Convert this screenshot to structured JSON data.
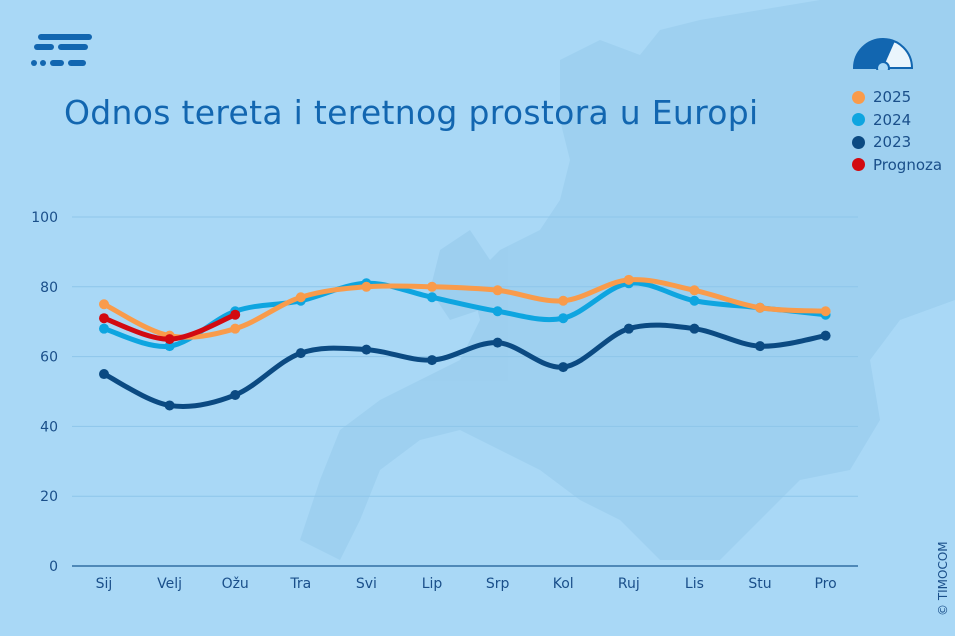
{
  "title": "Odnos tereta i teretnog prostora u Europi",
  "copyright": "© TIMOCOM",
  "legend": [
    {
      "label": "2025",
      "color": "#f99b4b"
    },
    {
      "label": "2024",
      "color": "#0ea5e0"
    },
    {
      "label": "2023",
      "color": "#0b4a82"
    },
    {
      "label": "Prognoza",
      "color": "#d20a11"
    }
  ],
  "colors": {
    "background": "#a9d8f6",
    "gridline": "#8ec6ea",
    "axis_text": "#1a4f8a",
    "brand": "#1266b0"
  },
  "chart_data": {
    "type": "line",
    "title": "Odnos tereta i teretnog prostora u Europi",
    "xlabel": "",
    "ylabel": "",
    "ylim": [
      0,
      100
    ],
    "yticks": [
      0,
      20,
      40,
      60,
      80,
      100
    ],
    "categories": [
      "Sij",
      "Velj",
      "Ožu",
      "Tra",
      "Svi",
      "Lip",
      "Srp",
      "Kol",
      "Ruj",
      "Lis",
      "Stu",
      "Pro"
    ],
    "grid": true,
    "legend_position": "top-right",
    "series": [
      {
        "name": "2023",
        "color": "#0b4a82",
        "values": [
          55,
          46,
          49,
          61,
          62,
          59,
          64,
          57,
          68,
          68,
          63,
          66
        ]
      },
      {
        "name": "2024",
        "color": "#0ea5e0",
        "values": [
          68,
          63,
          73,
          76,
          81,
          77,
          73,
          71,
          81,
          76,
          74,
          72
        ]
      },
      {
        "name": "2025",
        "color": "#f99b4b",
        "values": [
          75,
          66,
          68,
          77,
          80,
          80,
          79,
          76,
          82,
          79,
          74,
          73
        ]
      },
      {
        "name": "Prognoza",
        "color": "#d20a11",
        "values": [
          71,
          65,
          72,
          null,
          null,
          null,
          null,
          null,
          null,
          null,
          null,
          null
        ]
      }
    ]
  }
}
